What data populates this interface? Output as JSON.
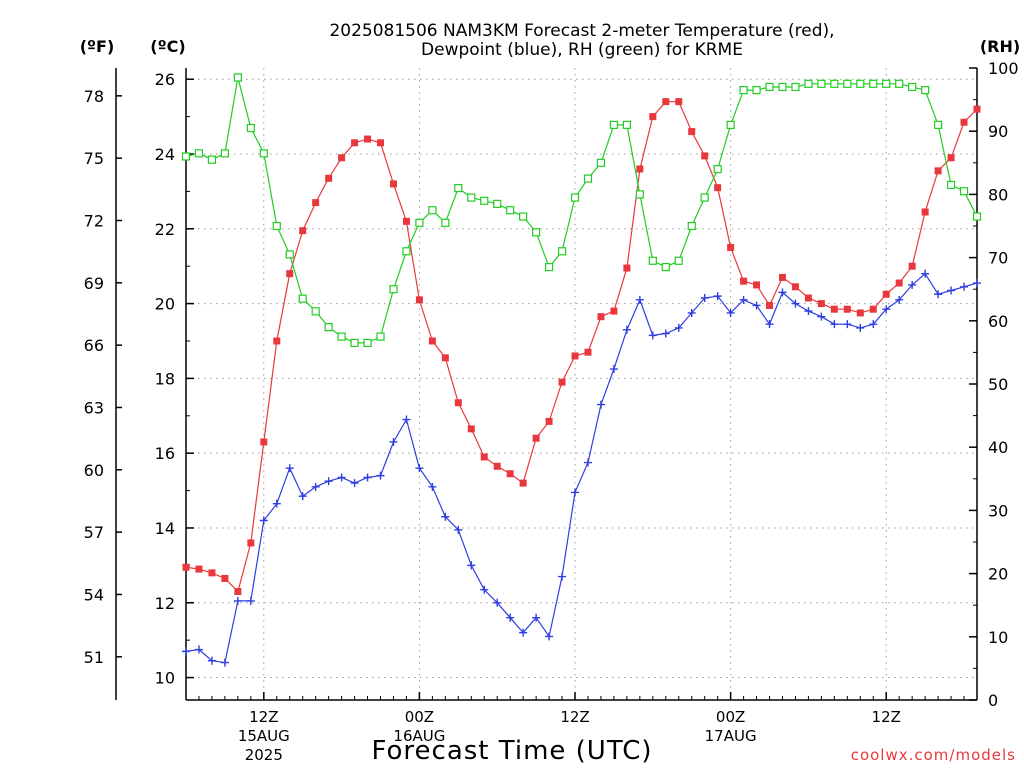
{
  "chart_data": {
    "type": "line",
    "title_line1": "2025081506 NAM3KM Forecast 2-meter Temperature (red),",
    "title_line2": "Dewpoint (blue), RH (green) for KRME",
    "xlabel": "Forecast Time (UTC)",
    "credit": "coolwx.com/models",
    "left_unit_f": "(ºF)",
    "left_unit_c": "(ºC)",
    "right_unit": "(RH)",
    "grid": true,
    "x_range_hours": [
      0,
      61
    ],
    "celsius_range": [
      9.4,
      26.3
    ],
    "rh_range": [
      0,
      100
    ],
    "celsius_ticks": [
      "10",
      "12",
      "14",
      "16",
      "18",
      "20",
      "22",
      "24",
      "26"
    ],
    "fahrenheit_ticks": [
      "51",
      "54",
      "57",
      "60",
      "63",
      "66",
      "69",
      "72",
      "75",
      "78"
    ],
    "rh_ticks": [
      "0",
      "10",
      "20",
      "30",
      "40",
      "50",
      "60",
      "70",
      "80",
      "90",
      "100"
    ],
    "x_ticks": [
      {
        "hour": 6,
        "label": "12Z",
        "date": "15AUG",
        "year": "2025"
      },
      {
        "hour": 18,
        "label": "00Z",
        "date": "16AUG",
        "year": ""
      },
      {
        "hour": 30,
        "label": "12Z",
        "date": "",
        "year": ""
      },
      {
        "hour": 42,
        "label": "00Z",
        "date": "17AUG",
        "year": ""
      },
      {
        "hour": 54,
        "label": "12Z",
        "date": "",
        "year": ""
      }
    ],
    "series": [
      {
        "key": "temperature",
        "color": "#e8383d",
        "marker": "filled-square",
        "axis": "celsius",
        "x": [
          0,
          1,
          2,
          3,
          4,
          5,
          6,
          7,
          8,
          9,
          10,
          11,
          12,
          13,
          14,
          15,
          16,
          17,
          18,
          19,
          20,
          21,
          22,
          23,
          24,
          25,
          26,
          27,
          28,
          29,
          30,
          31,
          32,
          33,
          34,
          35,
          36,
          37,
          38,
          39,
          40,
          41,
          42,
          43,
          44,
          45,
          46,
          47,
          48,
          49,
          50,
          51,
          52,
          53,
          54,
          55,
          56,
          57,
          58,
          59,
          60,
          61
        ],
        "values": [
          12.95,
          12.9,
          12.8,
          12.65,
          12.3,
          13.6,
          16.3,
          19.0,
          20.8,
          21.95,
          22.7,
          23.35,
          23.9,
          24.3,
          24.4,
          24.3,
          23.2,
          22.2,
          20.1,
          19.0,
          18.55,
          17.35,
          16.65,
          15.9,
          15.65,
          15.45,
          15.2,
          16.4,
          16.85,
          17.9,
          18.6,
          18.7,
          19.65,
          19.8,
          20.95,
          23.6,
          25.0,
          25.4,
          25.4,
          24.6,
          23.95,
          23.1,
          21.5,
          20.6,
          20.5,
          19.95,
          20.7,
          20.45,
          20.15,
          20.0,
          19.85,
          19.85,
          19.75,
          19.85,
          20.25,
          20.55,
          21.0,
          22.45,
          23.55,
          23.9,
          24.85,
          25.2
        ]
      },
      {
        "key": "dewpoint",
        "color": "#2f3ee0",
        "marker": "plus",
        "axis": "celsius",
        "x": [
          0,
          1,
          2,
          3,
          4,
          5,
          6,
          7,
          8,
          9,
          10,
          11,
          12,
          13,
          14,
          15,
          16,
          17,
          18,
          19,
          20,
          21,
          22,
          23,
          24,
          25,
          26,
          27,
          28,
          29,
          30,
          31,
          32,
          33,
          34,
          35,
          36,
          37,
          38,
          39,
          40,
          41,
          42,
          43,
          44,
          45,
          46,
          47,
          48,
          49,
          50,
          51,
          52,
          53,
          54,
          55,
          56,
          57,
          58,
          59,
          60,
          61
        ],
        "values": [
          10.7,
          10.75,
          10.45,
          10.4,
          12.05,
          12.05,
          14.2,
          14.65,
          15.6,
          14.85,
          15.1,
          15.25,
          15.35,
          15.2,
          15.35,
          15.4,
          16.3,
          16.9,
          15.6,
          15.1,
          14.3,
          13.95,
          13.0,
          12.35,
          12.0,
          11.6,
          11.2,
          11.6,
          11.1,
          12.7,
          14.95,
          15.75,
          17.3,
          18.25,
          19.3,
          20.1,
          19.15,
          19.2,
          19.35,
          19.75,
          20.15,
          20.2,
          19.75,
          20.1,
          19.95,
          19.45,
          20.3,
          20.0,
          19.8,
          19.65,
          19.45,
          19.45,
          19.35,
          19.45,
          19.85,
          20.1,
          20.5,
          20.8,
          20.25,
          20.35,
          20.45,
          20.55
        ]
      },
      {
        "key": "rh",
        "color": "#22cc22",
        "marker": "hollow-square",
        "axis": "rh",
        "x": [
          0,
          1,
          2,
          3,
          4,
          5,
          6,
          7,
          8,
          9,
          10,
          11,
          12,
          13,
          14,
          15,
          16,
          17,
          18,
          19,
          20,
          21,
          22,
          23,
          24,
          25,
          26,
          27,
          28,
          29,
          30,
          31,
          32,
          33,
          34,
          35,
          36,
          37,
          38,
          39,
          40,
          41,
          42,
          43,
          44,
          45,
          46,
          47,
          48,
          49,
          50,
          51,
          52,
          53,
          54,
          55,
          56,
          57,
          58,
          59,
          60,
          61
        ],
        "values": [
          86,
          86.5,
          85.5,
          86.5,
          98.5,
          90.5,
          86.5,
          75,
          70.5,
          63.5,
          61.5,
          59,
          57.5,
          56.5,
          56.5,
          57.5,
          65,
          71,
          75.5,
          77.5,
          75.5,
          81,
          79.5,
          79,
          78.5,
          77.5,
          76.5,
          74,
          68.5,
          71,
          79.5,
          82.5,
          85,
          91,
          91,
          80,
          69.5,
          68.5,
          69.5,
          75,
          79.5,
          84,
          91,
          96.5,
          96.5,
          97,
          97,
          97,
          97.5,
          97.5,
          97.5,
          97.5,
          97.5,
          97.5,
          97.5,
          97.5,
          97,
          96.5,
          91,
          81.5,
          80.5,
          76.5
        ]
      }
    ]
  }
}
